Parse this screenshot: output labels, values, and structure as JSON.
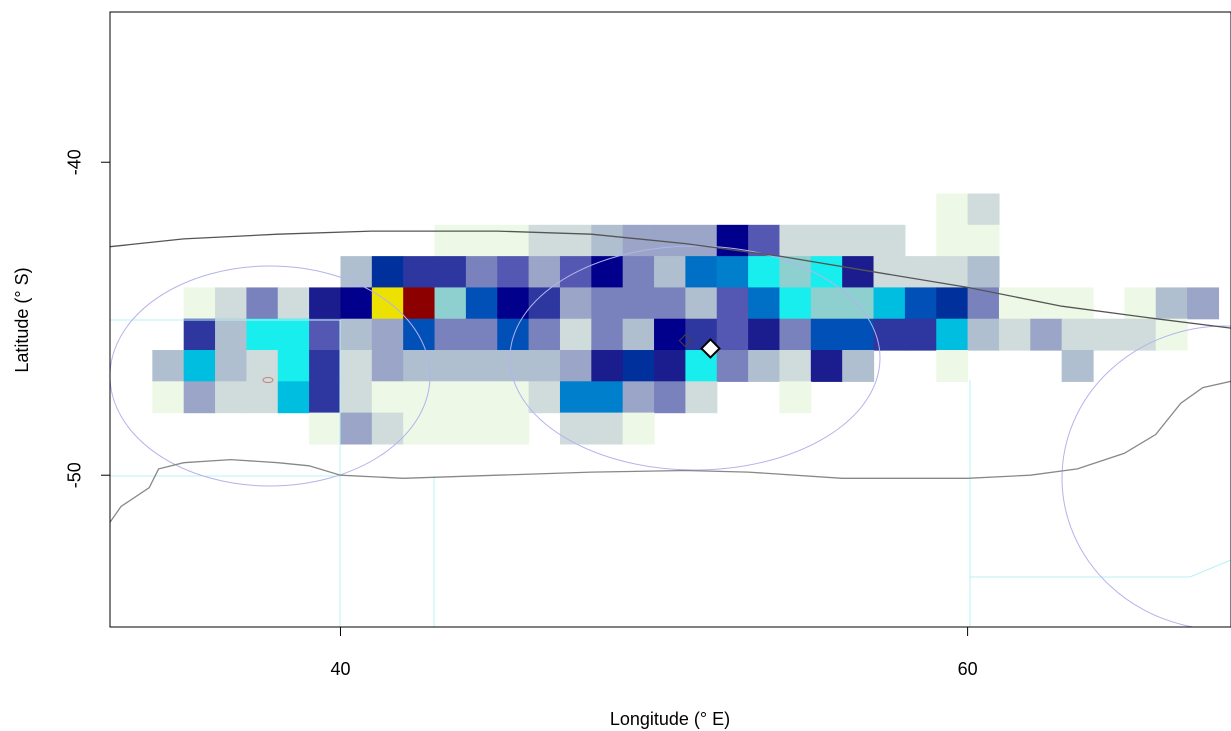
{
  "chart_data": {
    "type": "heatmap",
    "title": "",
    "xlabel": "Longitude (° E)",
    "ylabel": "Latitude (° S)",
    "xlim": [
      32.65,
      68.4
    ],
    "ylim": [
      -54.85,
      -35.2
    ],
    "xticks": [
      {
        "value": 40,
        "label": "40"
      },
      {
        "value": 60,
        "label": "60"
      }
    ],
    "yticks": [
      {
        "value": -40,
        "label": "-40"
      },
      {
        "value": -50,
        "label": "-50"
      }
    ],
    "grid": false,
    "legend": "none",
    "cell_size_deg": [
      1,
      1
    ],
    "palette": {
      "L": "#eef8e6",
      "G": "#cfdcdb",
      "S": "#b0bfcf",
      "M": "#9aa5c8",
      "P": "#7a82bd",
      "Q": "#5558b2",
      "I": "#2e37a0",
      "N": "#1b1d8e",
      "D": "#00008c",
      "R": "#00309c",
      "B": "#0050b8",
      "K": "#0070c6",
      "A": "#007fcc",
      "T": "#00bedf",
      "C": "#19eeee",
      "W": "#8ecfcf",
      "Y": "#ece100",
      "X": "#8c0000"
    },
    "grid_cols_start_lon": 33,
    "grid_rows": [
      {
        "lat": -41,
        "cells": "..........................LG."
      },
      {
        "lat": -42,
        "cells": "..........LLLGGSMMMDQGGGG.LL."
      },
      {
        "lat": -43,
        "cells": ".......SRIIPQMQDPSKACWCNGGGS."
      },
      {
        "lat": -44,
        "cells": "..LGPGNDYXWBDIMPPPSQKCWWTBRPLLL.LSM"
      },
      {
        "lat": -45,
        "cells": "..ISCCQSMBPPBPGPSDIQNPBBIITSGMGGGL"
      },
      {
        "lat": -46,
        "cells": ".STSGCIGMSSSSSMNRNCPSGNS..L...S"
      },
      {
        "lat": -47,
        "cells": ".LMGGTIGLLLLLGAAMPG..L.........."
      },
      {
        "lat": -48,
        "cells": "......LMGLLLL.GGL"
      }
    ],
    "markers": [
      {
        "type": "open-diamond-small",
        "lon": 51.0,
        "lat": -45.7
      },
      {
        "type": "filled-diamond-white",
        "lon": 51.8,
        "lat": -45.95
      }
    ],
    "lines": [
      {
        "name": "front-north",
        "color": "#555555",
        "points": [
          [
            32.65,
            -42.7
          ],
          [
            35,
            -42.45
          ],
          [
            38,
            -42.3
          ],
          [
            41,
            -42.2
          ],
          [
            45,
            -42.2
          ],
          [
            48,
            -42.3
          ],
          [
            51,
            -42.6
          ],
          [
            54,
            -43.0
          ],
          [
            57,
            -43.5
          ],
          [
            60,
            -44.0
          ],
          [
            63,
            -44.6
          ],
          [
            66,
            -45.0
          ],
          [
            68.4,
            -45.3
          ]
        ]
      },
      {
        "name": "front-south",
        "color": "#888888",
        "points": [
          [
            32.65,
            -51.5
          ],
          [
            33,
            -51.0
          ],
          [
            33.9,
            -50.4
          ],
          [
            34.2,
            -49.8
          ],
          [
            35,
            -49.6
          ],
          [
            36.5,
            -49.5
          ],
          [
            38,
            -49.6
          ],
          [
            39,
            -49.7
          ],
          [
            40,
            -50.0
          ],
          [
            42,
            -50.1
          ],
          [
            45,
            -50.0
          ],
          [
            48,
            -49.9
          ],
          [
            51,
            -49.85
          ],
          [
            53,
            -49.9
          ],
          [
            56,
            -50.1
          ],
          [
            60,
            -50.1
          ],
          [
            62,
            -50.0
          ],
          [
            63.5,
            -49.8
          ],
          [
            65,
            -49.3
          ],
          [
            66,
            -48.7
          ],
          [
            66.8,
            -47.7
          ],
          [
            67.5,
            -47.2
          ],
          [
            68.4,
            -47.0
          ]
        ]
      }
    ]
  }
}
